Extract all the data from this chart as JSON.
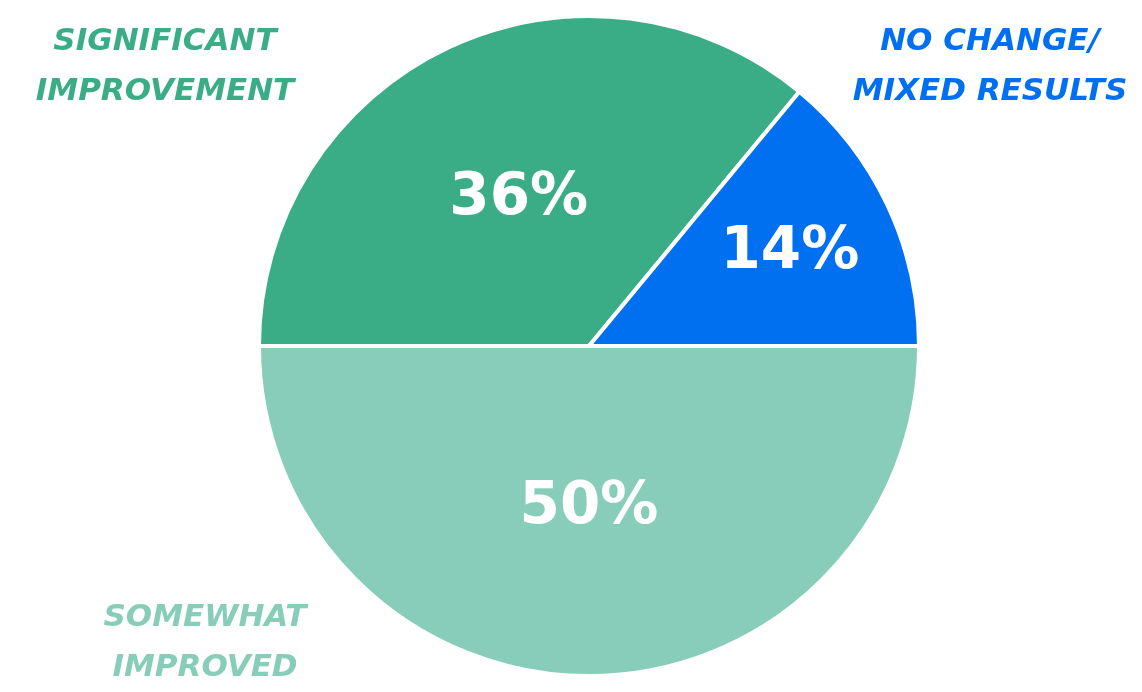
{
  "chart_data": {
    "type": "pie",
    "categories": [
      "SOMEWHAT\nIMPROVED",
      "SIGNIFICANT\nIMPROVEMENT",
      "NO CHANGE/\nMIXED RESULTS"
    ],
    "values": [
      50,
      36,
      14
    ],
    "colors": [
      "#88cdb9",
      "#3aad87",
      "#0070f0"
    ],
    "value_labels": [
      "50%",
      "36%",
      "14%"
    ]
  }
}
